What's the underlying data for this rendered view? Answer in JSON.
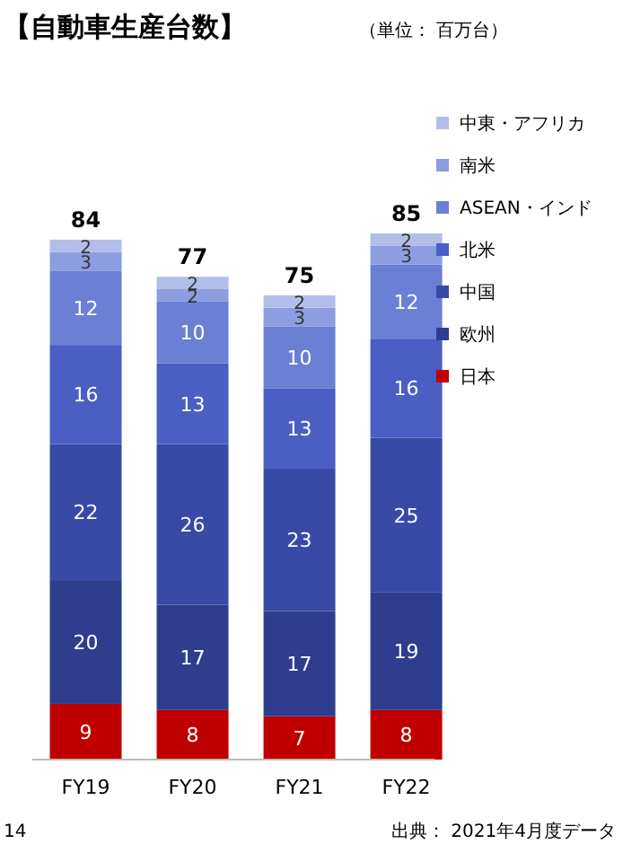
{
  "chart_data": {
    "type": "bar",
    "stacked": true,
    "title": "【自動車生産台数】",
    "subtitle": "（単位： 百万台）",
    "categories": [
      "FY19",
      "FY20",
      "FY21",
      "FY22"
    ],
    "series": [
      {
        "name": "日本",
        "color": "#c00000",
        "values": [
          9,
          8,
          7,
          8
        ]
      },
      {
        "name": "欧州",
        "color": "#2e3d8e",
        "values": [
          20,
          17,
          17,
          19
        ]
      },
      {
        "name": "中国",
        "color": "#3849a6",
        "values": [
          22,
          26,
          23,
          25
        ]
      },
      {
        "name": "北米",
        "color": "#4a5ec4",
        "values": [
          16,
          13,
          13,
          16
        ]
      },
      {
        "name": "ASEAN・インド",
        "color": "#6b80d4",
        "values": [
          12,
          10,
          10,
          12
        ]
      },
      {
        "name": "南米",
        "color": "#8c9de0",
        "values": [
          3,
          2,
          3,
          3
        ]
      },
      {
        "name": "中東・アフリカ",
        "color": "#b3bde9",
        "values": [
          2,
          2,
          2,
          2
        ]
      }
    ],
    "data_labels": true,
    "totals": [
      "84",
      "77",
      "75",
      "85"
    ],
    "legend": "right",
    "annotations": [
      "出典： 2021年4月度データ",
      "14"
    ]
  }
}
